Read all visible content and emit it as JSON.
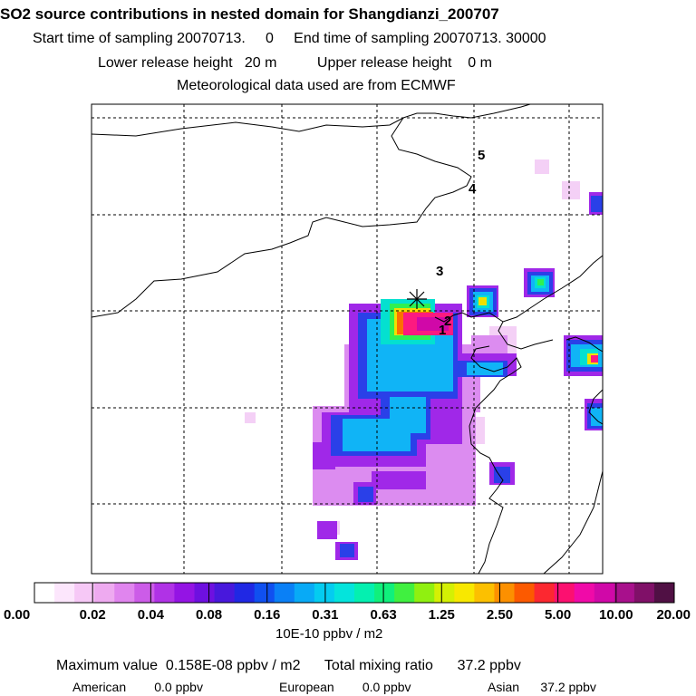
{
  "header": {
    "title": "SO2 source contributions in nested domain for Shangdianzi_200707",
    "sampling_line": "Start time of sampling 20070713.     0     End time of sampling 20070713. 30000",
    "release_line": "Lower release height   20 m          Upper release height    0 m",
    "met_line": "Meteorological data used are from ECMWF"
  },
  "map": {
    "markers": [
      "1",
      "2",
      "3",
      "4",
      "5"
    ]
  },
  "colorbar": {
    "tick_labels": [
      "0.00",
      "0.02",
      "0.04",
      "0.08",
      "0.16",
      "0.31",
      "0.63",
      "1.25",
      "2.50",
      "5.00",
      "10.00",
      "20.00"
    ],
    "unit_label": "10E-10 ppbv / m2",
    "colors": [
      "#ffffff",
      "#fce6fc",
      "#f6c8f6",
      "#eeaaf0",
      "#e085ee",
      "#cc5ce8",
      "#b032e6",
      "#9414e4",
      "#6e10e0",
      "#4818dc",
      "#2028e4",
      "#1050f0",
      "#0a80f6",
      "#08aaf6",
      "#04ccf0",
      "#04e4dc",
      "#04f0b0",
      "#10f07c",
      "#40f040",
      "#90f010",
      "#d4f004",
      "#f8e800",
      "#fcc000",
      "#fc9000",
      "#fc5a00",
      "#fc2830",
      "#fc1070",
      "#f00aa8",
      "#d008a8",
      "#a8108c",
      "#801068",
      "#501044"
    ]
  },
  "footer": {
    "max_line": "Maximum value  0.158E-08 ppbv / m2      Total mixing ratio      37.2 ppbv",
    "american": "American        0.0 ppbv",
    "european": "European        0.0 ppbv",
    "asian": "Asian      37.2 ppbv"
  },
  "chart_data": {
    "type": "heatmap",
    "title": "SO2 source contributions in nested domain for Shangdianzi_200707",
    "colorbar_levels": [
      0.0,
      0.02,
      0.04,
      0.08,
      0.16,
      0.31,
      0.63,
      1.25,
      2.5,
      5.0,
      10.0,
      20.0
    ],
    "unit": "10E-10 ppbv / m2",
    "max_value": "0.158E-08 ppbv / m2",
    "total_mixing_ratio_ppbv": 37.2,
    "contributions_ppbv": {
      "American": 0.0,
      "European": 0.0,
      "Asian": 37.2
    },
    "receptor": "Shangdianzi",
    "markers": [
      "1",
      "2",
      "3",
      "4",
      "5"
    ]
  }
}
